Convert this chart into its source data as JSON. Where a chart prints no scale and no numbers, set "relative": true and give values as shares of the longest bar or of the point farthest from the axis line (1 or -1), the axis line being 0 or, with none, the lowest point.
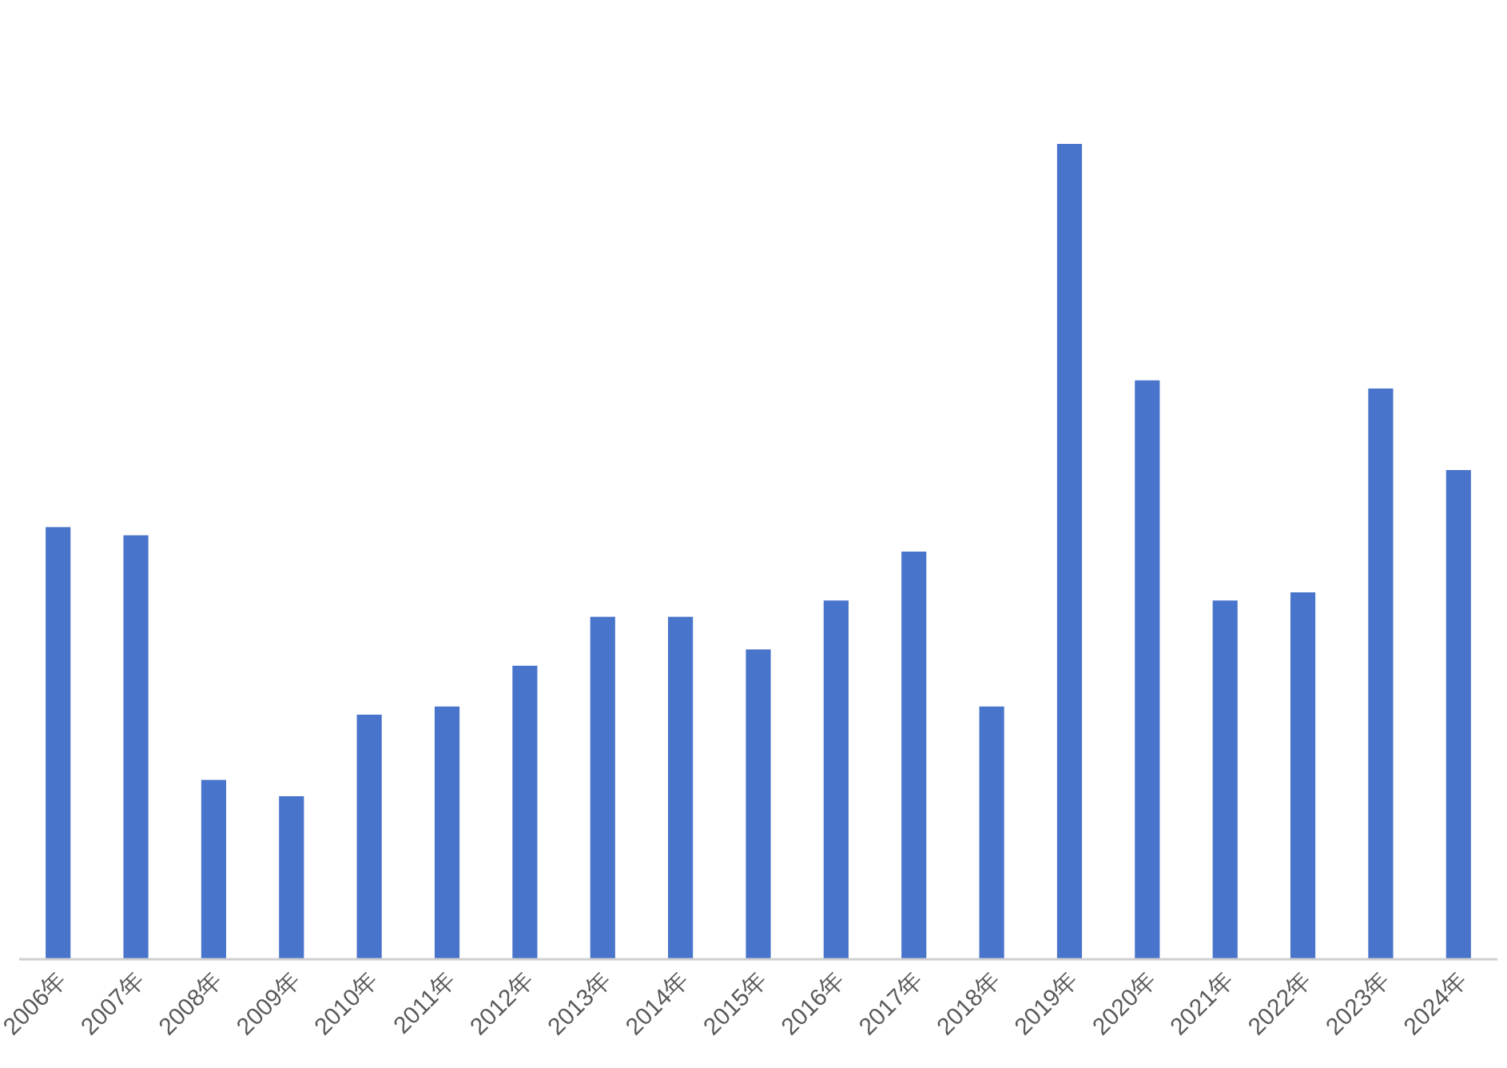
{
  "chart_data": {
    "type": "bar",
    "relative": true,
    "color": "#4874cb",
    "categories": [
      "2006年",
      "2007年",
      "2008年",
      "2009年",
      "2010年",
      "2011年",
      "2012年",
      "2013年",
      "2014年",
      "2015年",
      "2016年",
      "2017年",
      "2018年",
      "2019年",
      "2020年",
      "2021年",
      "2022年",
      "2023年",
      "2024年"
    ],
    "values": [
      0.53,
      0.52,
      0.22,
      0.2,
      0.3,
      0.31,
      0.36,
      0.42,
      0.42,
      0.38,
      0.44,
      0.5,
      0.31,
      1,
      0.71,
      0.44,
      0.45,
      0.7,
      0.6
    ]
  }
}
